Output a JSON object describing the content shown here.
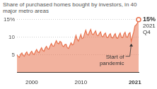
{
  "chart_data": {
    "type": "area",
    "title": "Share of purchased homes bought by investors, in 40 major metro areas",
    "categories": [
      null,
      null,
      null,
      null,
      null,
      null,
      null,
      null,
      null,
      null,
      null,
      null,
      "2000",
      null,
      null,
      null,
      null,
      null,
      null,
      null,
      null,
      null,
      null,
      null,
      null,
      null,
      null,
      null,
      null,
      null,
      null,
      null,
      null,
      null,
      null,
      null,
      null,
      null,
      null,
      null,
      null,
      null,
      null,
      null,
      null,
      null,
      null,
      null,
      null,
      null,
      null,
      null,
      "2010",
      null,
      null,
      null,
      null,
      null,
      null,
      null,
      null,
      null,
      null,
      null,
      null,
      null,
      null,
      null,
      null,
      null,
      null,
      null,
      null,
      null,
      null,
      null,
      null,
      null,
      null,
      null,
      null,
      null,
      null,
      null,
      null,
      null,
      null,
      null,
      null,
      null,
      null,
      null,
      null,
      null,
      null,
      null,
      "2021",
      null,
      null,
      null
    ],
    "values": [
      5.0,
      4.5,
      4.3,
      5.2,
      5.5,
      4.8,
      4.6,
      5.4,
      5.8,
      5.0,
      4.9,
      5.6,
      6.0,
      5.3,
      5.1,
      5.9,
      6.5,
      5.8,
      5.6,
      6.4,
      7.0,
      6.2,
      6.0,
      6.9,
      7.4,
      6.7,
      6.6,
      7.5,
      8.2,
      7.5,
      7.4,
      8.3,
      9.0,
      8.3,
      8.1,
      8.8,
      8.6,
      7.6,
      7.3,
      7.9,
      8.0,
      7.0,
      6.8,
      7.6,
      8.4,
      7.8,
      8.0,
      9.2,
      10.5,
      9.4,
      8.9,
      9.8,
      10.8,
      9.6,
      9.8,
      11.0,
      12.0,
      10.8,
      10.6,
      11.5,
      12.2,
      11.0,
      10.7,
      11.3,
      11.8,
      10.6,
      10.4,
      11.0,
      11.5,
      10.3,
      10.1,
      10.8,
      11.2,
      10.0,
      9.9,
      10.6,
      11.0,
      9.9,
      9.8,
      10.5,
      11.0,
      9.8,
      9.7,
      10.6,
      11.2,
      10.0,
      9.9,
      10.9,
      11.4,
      10.1,
      10.0,
      11.0,
      11.3,
      8.8,
      10.2,
      11.5,
      13.2,
      13.5,
      14.0,
      15.0
    ],
    "color": "#e8734f",
    "ylim": [
      0,
      15
    ],
    "yticks": [
      5,
      10,
      {
        "value": 15,
        "label": "15%"
      }
    ],
    "grid": true,
    "annotations": [
      {
        "text": "Start of pandemic",
        "point": 93
      },
      {
        "lines": [
          "15%",
          "2021",
          "Q4"
        ],
        "point": 99
      }
    ]
  }
}
